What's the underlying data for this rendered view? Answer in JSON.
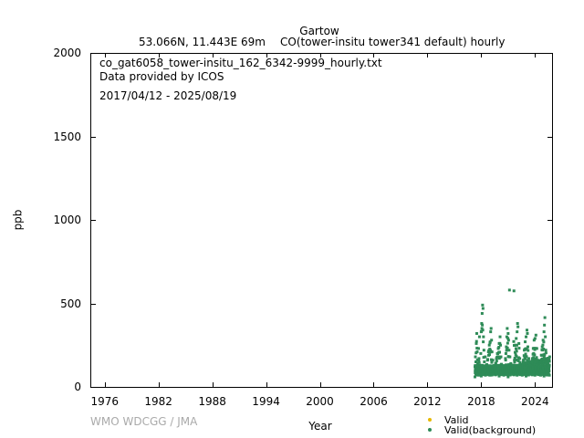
{
  "chart_data": {
    "type": "scatter",
    "title": "Gartow",
    "subtitle_left": "53.066N, 11.443E 69m",
    "subtitle_right": "CO(tower-insitu tower341 default) hourly",
    "annotations": [
      "co_gat6058_tower-insitu_162_6342-9999_hourly.txt",
      "Data provided by ICOS",
      "2017/04/12 - 2025/08/19"
    ],
    "xlabel": "Year",
    "ylabel": "ppb",
    "xlim": [
      1974.5,
      2025.9
    ],
    "ylim": [
      0,
      2000
    ],
    "x_ticks": [
      1976,
      1982,
      1988,
      1994,
      2000,
      2006,
      2012,
      2018,
      2024
    ],
    "y_ticks": [
      0,
      500,
      1000,
      1500,
      2000
    ],
    "watermark": "WMO WDCGG / JMA",
    "legend": {
      "placement": "bottom-right",
      "entries": [
        {
          "label": "Valid",
          "color": "#e6b800"
        },
        {
          "label": "Valid(background)",
          "color": "#2e8b57"
        }
      ]
    },
    "series": [
      {
        "name": "Valid(background)",
        "color": "#2e8b57",
        "points": [
          [
            2017.3,
            120
          ],
          [
            2017.35,
            180
          ],
          [
            2017.4,
            150
          ],
          [
            2017.45,
            260
          ],
          [
            2017.5,
            320
          ],
          [
            2017.55,
            210
          ],
          [
            2017.6,
            140
          ],
          [
            2017.65,
            100
          ],
          [
            2017.7,
            230
          ],
          [
            2017.75,
            170
          ],
          [
            2017.8,
            300
          ],
          [
            2017.85,
            130
          ],
          [
            2017.9,
            90
          ],
          [
            2017.95,
            200
          ],
          [
            2018.0,
            330
          ],
          [
            2018.05,
            380
          ],
          [
            2018.1,
            440
          ],
          [
            2018.15,
            490
          ],
          [
            2018.2,
            470
          ],
          [
            2018.25,
            300
          ],
          [
            2018.3,
            220
          ],
          [
            2018.35,
            150
          ],
          [
            2018.4,
            110
          ],
          [
            2018.45,
            180
          ],
          [
            2018.5,
            95
          ],
          [
            2018.6,
            130
          ],
          [
            2018.7,
            160
          ],
          [
            2018.8,
            210
          ],
          [
            2018.9,
            250
          ],
          [
            2019.0,
            270
          ],
          [
            2019.05,
            330
          ],
          [
            2019.1,
            350
          ],
          [
            2019.15,
            280
          ],
          [
            2019.2,
            210
          ],
          [
            2019.3,
            160
          ],
          [
            2019.4,
            120
          ],
          [
            2019.5,
            100
          ],
          [
            2019.6,
            140
          ],
          [
            2019.7,
            170
          ],
          [
            2019.8,
            200
          ],
          [
            2019.9,
            230
          ],
          [
            2020.0,
            260
          ],
          [
            2020.1,
            300
          ],
          [
            2020.15,
            250
          ],
          [
            2020.2,
            180
          ],
          [
            2020.3,
            130
          ],
          [
            2020.4,
            110
          ],
          [
            2020.5,
            95
          ],
          [
            2020.6,
            120
          ],
          [
            2020.7,
            170
          ],
          [
            2020.8,
            240
          ],
          [
            2020.85,
            300
          ],
          [
            2020.9,
            350
          ],
          [
            2021.0,
            320
          ],
          [
            2021.05,
            280
          ],
          [
            2021.1,
            220
          ],
          [
            2021.15,
            580
          ],
          [
            2021.2,
            180
          ],
          [
            2021.3,
            140
          ],
          [
            2021.4,
            120
          ],
          [
            2021.5,
            100
          ],
          [
            2021.6,
            130
          ],
          [
            2021.65,
            575
          ],
          [
            2021.7,
            160
          ],
          [
            2021.8,
            250
          ],
          [
            2021.9,
            290
          ],
          [
            2022.0,
            330
          ],
          [
            2022.05,
            380
          ],
          [
            2022.1,
            360
          ],
          [
            2022.2,
            260
          ],
          [
            2022.3,
            170
          ],
          [
            2022.4,
            120
          ],
          [
            2022.5,
            90
          ],
          [
            2022.6,
            120
          ],
          [
            2022.7,
            160
          ],
          [
            2022.8,
            220
          ],
          [
            2022.9,
            270
          ],
          [
            2023.0,
            300
          ],
          [
            2023.1,
            340
          ],
          [
            2023.15,
            320
          ],
          [
            2023.2,
            240
          ],
          [
            2023.3,
            170
          ],
          [
            2023.4,
            120
          ],
          [
            2023.5,
            95
          ],
          [
            2023.6,
            130
          ],
          [
            2023.7,
            170
          ],
          [
            2023.8,
            230
          ],
          [
            2023.9,
            280
          ],
          [
            2024.0,
            290
          ],
          [
            2024.1,
            310
          ],
          [
            2024.2,
            230
          ],
          [
            2024.3,
            160
          ],
          [
            2024.4,
            110
          ],
          [
            2024.5,
            90
          ],
          [
            2024.6,
            140
          ],
          [
            2024.7,
            190
          ],
          [
            2024.8,
            240
          ],
          [
            2024.9,
            280
          ],
          [
            2025.0,
            330
          ],
          [
            2025.05,
            370
          ],
          [
            2025.1,
            415
          ],
          [
            2025.15,
            300
          ],
          [
            2025.2,
            220
          ],
          [
            2025.3,
            160
          ],
          [
            2025.4,
            120
          ],
          [
            2025.5,
            100
          ],
          [
            2025.6,
            130
          ],
          [
            2025.63,
            180
          ],
          [
            2017.3,
            60
          ],
          [
            2018.0,
            65
          ],
          [
            2019.0,
            70
          ],
          [
            2020.0,
            65
          ],
          [
            2021.0,
            60
          ],
          [
            2022.0,
            70
          ],
          [
            2023.0,
            65
          ],
          [
            2024.0,
            70
          ],
          [
            2025.0,
            65
          ],
          [
            2025.6,
            70
          ]
        ]
      }
    ]
  }
}
